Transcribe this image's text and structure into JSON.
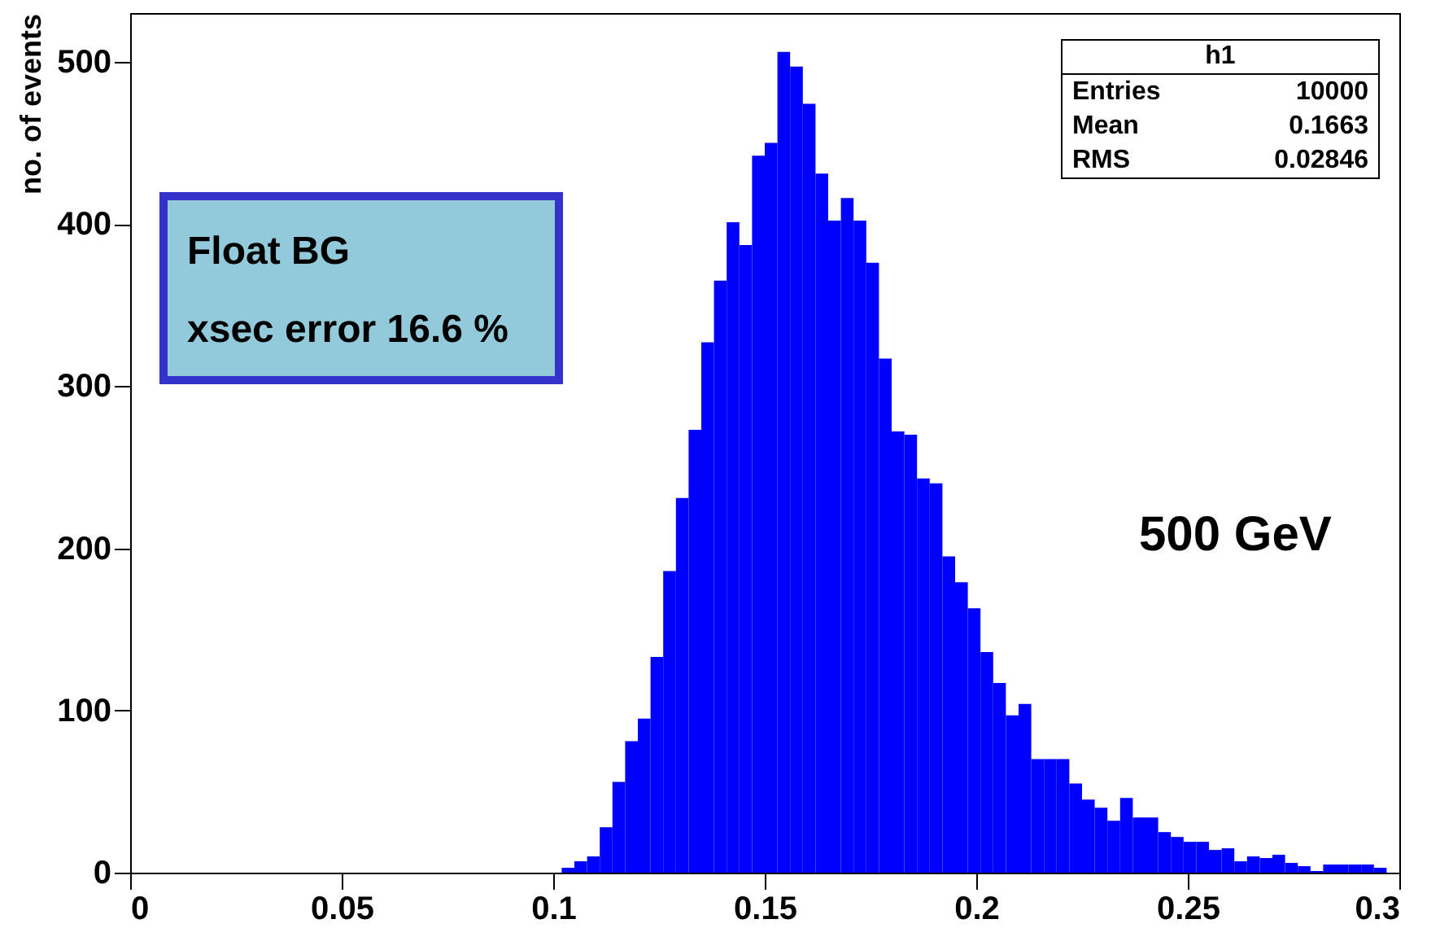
{
  "chart_data": {
    "type": "histogram",
    "ylabel": "no. of events",
    "bins": [
      0,
      0.003,
      0.006,
      0.009,
      0.012,
      0.015,
      0.018,
      0.021,
      0.024,
      0.027,
      0.03,
      0.033,
      0.036,
      0.039,
      0.042,
      0.045,
      0.048,
      0.051,
      0.054,
      0.057,
      0.06,
      0.063,
      0.066,
      0.069,
      0.072,
      0.075,
      0.078,
      0.081,
      0.084,
      0.087,
      0.09,
      0.093,
      0.096,
      0.099,
      0.102,
      0.105,
      0.108,
      0.111,
      0.114,
      0.117,
      0.12,
      0.123,
      0.126,
      0.129,
      0.132,
      0.135,
      0.138,
      0.141,
      0.144,
      0.147,
      0.15,
      0.153,
      0.156,
      0.159,
      0.162,
      0.165,
      0.168,
      0.171,
      0.174,
      0.177,
      0.18,
      0.183,
      0.186,
      0.189,
      0.192,
      0.195,
      0.198,
      0.201,
      0.204,
      0.207,
      0.21,
      0.213,
      0.216,
      0.219,
      0.222,
      0.225,
      0.228,
      0.231,
      0.234,
      0.237,
      0.24,
      0.243,
      0.246,
      0.249,
      0.252,
      0.255,
      0.258,
      0.261,
      0.264,
      0.267,
      0.27,
      0.273,
      0.276,
      0.279,
      0.282,
      0.285,
      0.288,
      0.291,
      0.294,
      0.297,
      0.3
    ],
    "values": [
      0,
      0,
      0,
      0,
      0,
      0,
      0,
      0,
      0,
      0,
      0,
      0,
      0,
      0,
      0,
      0,
      0,
      0,
      0,
      0,
      0,
      0,
      0,
      0,
      0,
      0,
      0,
      0,
      0,
      0,
      0,
      0,
      0,
      0,
      3,
      7,
      10,
      28,
      56,
      81,
      95,
      133,
      186,
      231,
      273,
      327,
      365,
      401,
      387,
      442,
      450,
      506,
      497,
      474,
      431,
      402,
      416,
      402,
      376,
      317,
      272,
      270,
      243,
      240,
      195,
      179,
      163,
      136,
      117,
      97,
      104,
      70,
      70,
      70,
      55,
      45,
      40,
      32,
      46,
      34,
      34,
      25,
      22,
      19,
      19,
      14,
      15,
      7,
      10,
      9,
      11,
      6,
      4,
      1,
      5,
      5,
      5,
      5,
      3,
      0
    ],
    "color": "#0000ff",
    "xlim": [
      0,
      0.3
    ],
    "xticks": [
      0,
      0.05,
      0.1,
      0.15,
      0.2,
      0.25,
      0.3
    ],
    "ylim": [
      0,
      530
    ],
    "yticks": [
      0,
      100,
      200,
      300,
      400,
      500
    ],
    "grid": false,
    "annotations": [
      "Float BG",
      "xsec error 16.6 %",
      "500 GeV",
      "h1",
      "Entries 10000",
      "Mean 0.1663",
      "RMS 0.02846"
    ]
  }
}
